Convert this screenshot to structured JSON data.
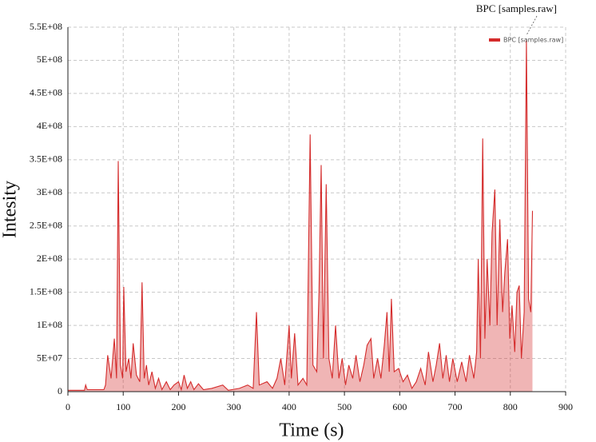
{
  "chart_data": {
    "type": "area",
    "annotation": "BPC [samples.raw]",
    "x_label": "Time (s)",
    "y_label": "Intesity",
    "legend": "top-right",
    "grid": true,
    "xlim": [
      0,
      900
    ],
    "xticks": [
      0,
      100,
      200,
      300,
      400,
      500,
      600,
      700,
      800,
      900
    ],
    "ylim": [
      0,
      550000000
    ],
    "yticks": [
      0,
      {
        "value": 50000000,
        "label": "5E+07"
      },
      {
        "value": 100000000,
        "label": "1E+08"
      },
      {
        "value": 150000000,
        "label": "1.5E+08"
      },
      {
        "value": 200000000,
        "label": "2E+08"
      },
      {
        "value": 250000000,
        "label": "2.5E+08"
      },
      {
        "value": 300000000,
        "label": "3E+08"
      },
      {
        "value": 350000000,
        "label": "3.5E+08"
      },
      {
        "value": 400000000,
        "label": "4E+08"
      },
      {
        "value": 450000000,
        "label": "4.5E+08"
      },
      {
        "value": 500000000,
        "label": "5E+08"
      },
      {
        "value": 550000000,
        "label": "5.5E+08"
      }
    ],
    "x": [
      0,
      30,
      32,
      35,
      65,
      68,
      72,
      78,
      84,
      88,
      91,
      95,
      99,
      101,
      105,
      110,
      114,
      118,
      124,
      130,
      134,
      138,
      142,
      146,
      152,
      158,
      164,
      170,
      178,
      185,
      192,
      200,
      205,
      210,
      216,
      222,
      228,
      236,
      245,
      260,
      280,
      290,
      310,
      325,
      335,
      341,
      346,
      360,
      370,
      378,
      385,
      392,
      400,
      404,
      410,
      416,
      425,
      432,
      438,
      443,
      450,
      454,
      458,
      462,
      467,
      472,
      478,
      484,
      490,
      496,
      502,
      508,
      515,
      521,
      528,
      535,
      541,
      548,
      553,
      560,
      566,
      572,
      577,
      581,
      585,
      590,
      598,
      606,
      614,
      622,
      630,
      638,
      646,
      652,
      660,
      666,
      672,
      678,
      684,
      690,
      696,
      704,
      712,
      720,
      726,
      734,
      739,
      742,
      746,
      750,
      754,
      758,
      763,
      767,
      772,
      776,
      781,
      786,
      790,
      795,
      799,
      803,
      808,
      812,
      816,
      820,
      825,
      829,
      833,
      837,
      840
    ],
    "series": [
      {
        "name": "BPC [samples.raw]",
        "color": "#d42b2b",
        "values": [
          2000000.0,
          2000000.0,
          10000000.0,
          3000000.0,
          3000000.0,
          10000000.0,
          55000000.0,
          20000000.0,
          80000000.0,
          20000000.0,
          348000000.0,
          40000000.0,
          20000000.0,
          158000000.0,
          30000000.0,
          50000000.0,
          20000000.0,
          73000000.0,
          25000000.0,
          15000000.0,
          165000000.0,
          20000000.0,
          40000000.0,
          10000000.0,
          30000000.0,
          5000000.0,
          20000000.0,
          3000000.0,
          15000000.0,
          3000000.0,
          10000000.0,
          15000000.0,
          3000000.0,
          25000000.0,
          5000000.0,
          15000000.0,
          3000000.0,
          12000000.0,
          3000000.0,
          5000000.0,
          10000000.0,
          2000000.0,
          5000000.0,
          10000000.0,
          5000000.0,
          120000000.0,
          10000000.0,
          15000000.0,
          5000000.0,
          20000000.0,
          50000000.0,
          10000000.0,
          100000000.0,
          20000000.0,
          88000000.0,
          10000000.0,
          20000000.0,
          10000000.0,
          388000000.0,
          40000000.0,
          30000000.0,
          150000000.0,
          342000000.0,
          50000000.0,
          313000000.0,
          50000000.0,
          20000000.0,
          100000000.0,
          20000000.0,
          50000000.0,
          10000000.0,
          40000000.0,
          20000000.0,
          55000000.0,
          15000000.0,
          40000000.0,
          70000000.0,
          80000000.0,
          20000000.0,
          50000000.0,
          20000000.0,
          70000000.0,
          120000000.0,
          30000000.0,
          140000000.0,
          30000000.0,
          35000000.0,
          15000000.0,
          25000000.0,
          5000000.0,
          15000000.0,
          35000000.0,
          10000000.0,
          60000000.0,
          15000000.0,
          40000000.0,
          73000000.0,
          20000000.0,
          55000000.0,
          15000000.0,
          50000000.0,
          15000000.0,
          45000000.0,
          15000000.0,
          55000000.0,
          20000000.0,
          60000000.0,
          200000000.0,
          50000000.0,
          382000000.0,
          80000000.0,
          200000000.0,
          100000000.0,
          240000000.0,
          305000000.0,
          100000000.0,
          260000000.0,
          120000000.0,
          180000000.0,
          230000000.0,
          80000000.0,
          130000000.0,
          60000000.0,
          150000000.0,
          160000000.0,
          50000000.0,
          120000000.0,
          530000000.0,
          140000000.0,
          120000000.0,
          273000000.0
        ]
      }
    ]
  }
}
